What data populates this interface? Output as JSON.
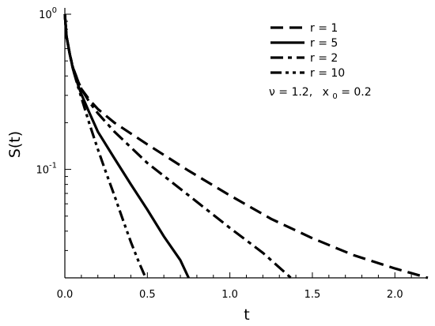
{
  "chart_data": {
    "type": "line",
    "xlabel": "t",
    "ylabel": "S(t)",
    "x_scale": "linear",
    "y_scale": "log",
    "xlim": [
      0,
      2.2
    ],
    "ylim": [
      0.02,
      1
    ],
    "x_ticks": [
      {
        "value": 0.0,
        "label": "0.0"
      },
      {
        "value": 0.5,
        "label": "0.5"
      },
      {
        "value": 1.0,
        "label": "1.0"
      },
      {
        "value": 1.5,
        "label": "1.5"
      },
      {
        "value": 2.0,
        "label": "2.0"
      }
    ],
    "y_ticks": [
      {
        "value": 1,
        "label_base": "10",
        "label_exp": "0"
      },
      {
        "value": 0.1,
        "label_base": "10",
        "label_exp": "-1"
      }
    ],
    "legend_position": "top-right",
    "annotation": {
      "nu_text": "ν = 1.2,",
      "x0_base": "x",
      "x0_sub": "0",
      "x0_value": " = 0.2"
    },
    "series": [
      {
        "name": "r = 1",
        "dash": "long-dash",
        "points": [
          [
            0,
            1
          ],
          [
            0.01,
            0.72
          ],
          [
            0.03,
            0.55
          ],
          [
            0.05,
            0.45
          ],
          [
            0.08,
            0.37
          ],
          [
            0.1,
            0.33
          ],
          [
            0.15,
            0.28
          ],
          [
            0.2,
            0.245
          ],
          [
            0.3,
            0.2
          ],
          [
            0.5,
            0.145
          ],
          [
            0.75,
            0.098
          ],
          [
            1.0,
            0.068
          ],
          [
            1.25,
            0.048
          ],
          [
            1.5,
            0.036
          ],
          [
            1.75,
            0.028
          ],
          [
            2.0,
            0.023
          ],
          [
            2.2,
            0.02
          ]
        ]
      },
      {
        "name": "r = 5",
        "dash": "solid",
        "points": [
          [
            0,
            1
          ],
          [
            0.01,
            0.72
          ],
          [
            0.03,
            0.55
          ],
          [
            0.05,
            0.44
          ],
          [
            0.08,
            0.35
          ],
          [
            0.1,
            0.305
          ],
          [
            0.15,
            0.23
          ],
          [
            0.2,
            0.175
          ],
          [
            0.3,
            0.118
          ],
          [
            0.4,
            0.08
          ],
          [
            0.5,
            0.055
          ],
          [
            0.6,
            0.037
          ],
          [
            0.7,
            0.026
          ],
          [
            0.75,
            0.02
          ]
        ]
      },
      {
        "name": "r = 2",
        "dash": "dash-dot",
        "points": [
          [
            0,
            1
          ],
          [
            0.01,
            0.72
          ],
          [
            0.03,
            0.55
          ],
          [
            0.05,
            0.45
          ],
          [
            0.08,
            0.37
          ],
          [
            0.1,
            0.33
          ],
          [
            0.15,
            0.27
          ],
          [
            0.2,
            0.23
          ],
          [
            0.3,
            0.175
          ],
          [
            0.5,
            0.11
          ],
          [
            0.75,
            0.068
          ],
          [
            1.0,
            0.042
          ],
          [
            1.2,
            0.029
          ],
          [
            1.37,
            0.02
          ]
        ]
      },
      {
        "name": "r = 10",
        "dash": "dash-dot-dot",
        "points": [
          [
            0,
            1
          ],
          [
            0.01,
            0.72
          ],
          [
            0.03,
            0.55
          ],
          [
            0.05,
            0.44
          ],
          [
            0.08,
            0.34
          ],
          [
            0.1,
            0.29
          ],
          [
            0.15,
            0.195
          ],
          [
            0.2,
            0.135
          ],
          [
            0.25,
            0.095
          ],
          [
            0.3,
            0.068
          ],
          [
            0.35,
            0.048
          ],
          [
            0.4,
            0.034
          ],
          [
            0.45,
            0.025
          ],
          [
            0.49,
            0.02
          ]
        ]
      }
    ]
  }
}
